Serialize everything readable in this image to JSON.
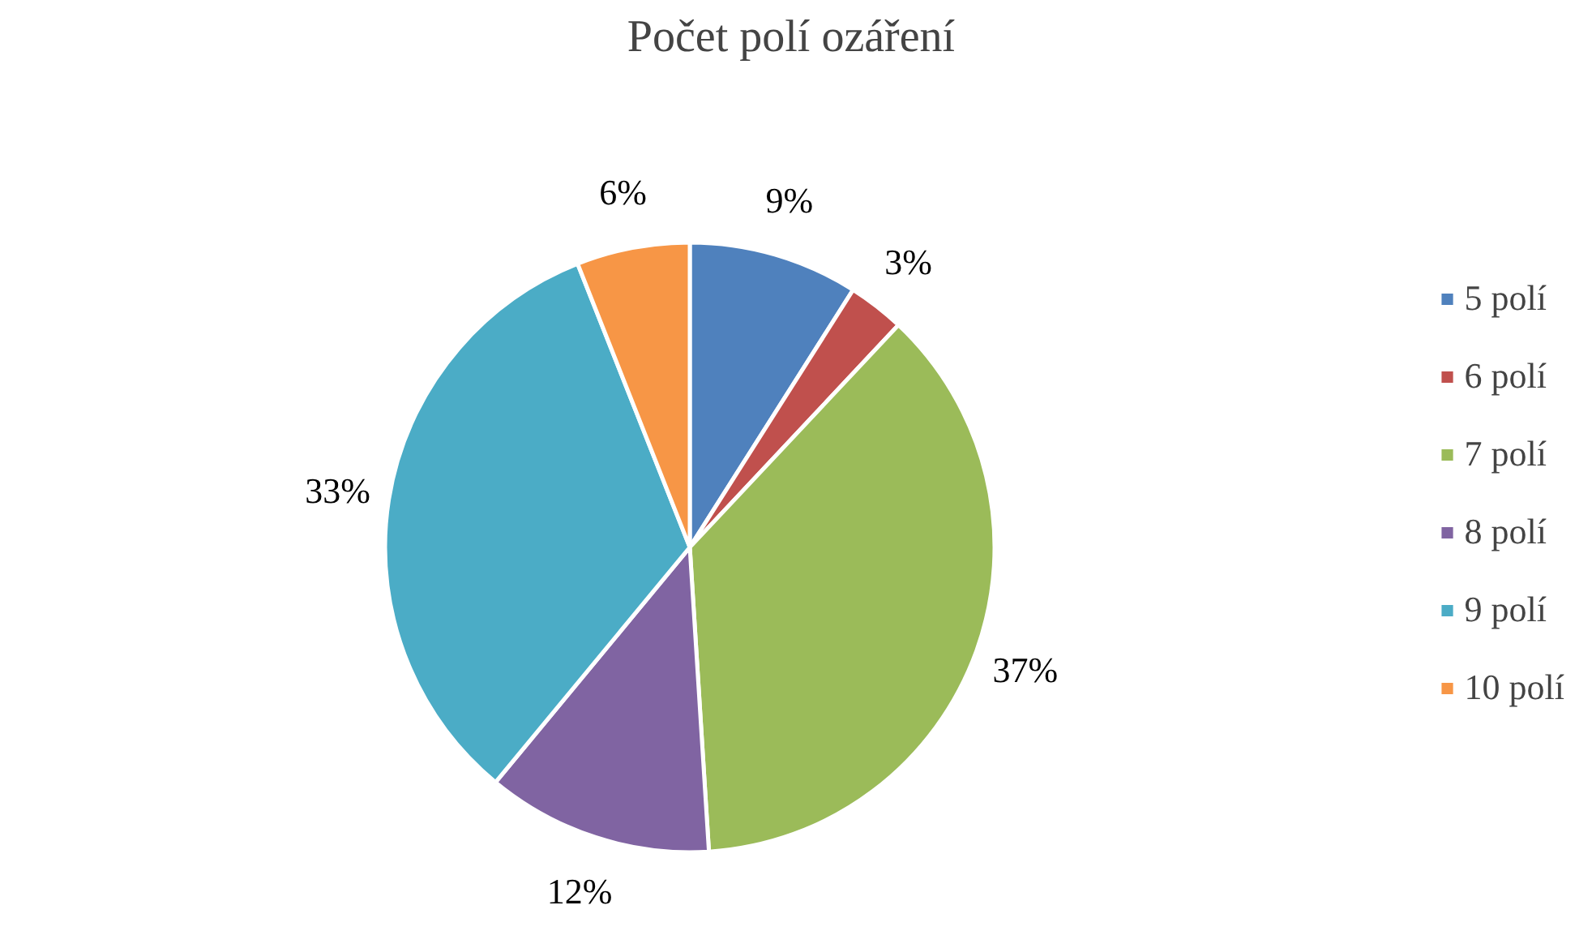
{
  "chart_data": {
    "type": "pie",
    "title": "Počet polí ozáření",
    "categories": [
      "5 polí",
      "6 polí",
      "7 polí",
      "8 polí",
      "9 polí",
      "10 polí"
    ],
    "values": [
      9,
      3,
      37,
      12,
      33,
      6
    ],
    "colors": [
      "#4f81bd",
      "#c0504d",
      "#9bbb59",
      "#8064a2",
      "#4bacc6",
      "#f79646"
    ],
    "value_labels": [
      "9%",
      "3%",
      "37%",
      "12%",
      "33%",
      "6%"
    ],
    "legend": "right"
  }
}
